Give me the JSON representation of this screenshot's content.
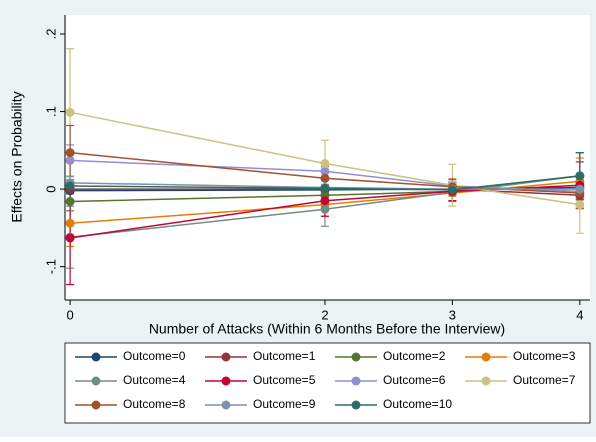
{
  "chart_data": {
    "type": "line",
    "xlabel": "Number of Attacks (Within 6 Months Before the Interview)",
    "ylabel": "Effects on Probability",
    "x": [
      0,
      2,
      3,
      4
    ],
    "xlim": [
      -0.04,
      4.08
    ],
    "xticks": [
      0,
      2,
      3,
      4
    ],
    "ylim": [
      -0.143,
      0.2245
    ],
    "yticks": [
      {
        "value": -0.1,
        "label": "-.1"
      },
      0,
      {
        "value": 0.1,
        "label": ".1"
      },
      {
        "value": 0.2,
        "label": ".2"
      }
    ],
    "grid": false,
    "legend": "bottom",
    "series": [
      {
        "name": "Outcome=0",
        "color": "#1a476f",
        "values": [
          -0.002,
          -0.001,
          0.0,
          0.002
        ],
        "errors": [
          0.004,
          0.002,
          0.002,
          0.004
        ]
      },
      {
        "name": "Outcome=1",
        "color": "#90353b",
        "values": [
          0.0,
          0.0,
          0.0,
          -0.008
        ],
        "errors": [
          0.004,
          0.003,
          0.003,
          0.006
        ]
      },
      {
        "name": "Outcome=2",
        "color": "#55752f",
        "values": [
          -0.016,
          -0.008,
          -0.003,
          0.017
        ],
        "errors": [
          0.012,
          0.008,
          0.006,
          0.03
        ]
      },
      {
        "name": "Outcome=3",
        "color": "#e37e00",
        "values": [
          -0.044,
          -0.02,
          -0.005,
          0.01
        ],
        "errors": [
          0.03,
          0.015,
          0.01,
          0.03
        ]
      },
      {
        "name": "Outcome=4",
        "color": "#6e8e84",
        "values": [
          -0.062,
          -0.026,
          -0.004,
          0.017
        ],
        "errors": [
          0.04,
          0.022,
          0.012,
          0.03
        ]
      },
      {
        "name": "Outcome=5",
        "color": "#c10534",
        "values": [
          -0.063,
          -0.015,
          -0.003,
          0.005
        ],
        "errors": [
          0.06,
          0.02,
          0.012,
          0.03
        ]
      },
      {
        "name": "Outcome=6",
        "color": "#938dd2",
        "values": [
          0.037,
          0.023,
          0.004,
          -0.003
        ],
        "errors": [
          0.02,
          0.012,
          0.008,
          0.02
        ]
      },
      {
        "name": "Outcome=7",
        "color": "#cac27e",
        "values": [
          0.099,
          0.033,
          0.005,
          -0.02
        ],
        "errors": [
          0.082,
          0.03,
          0.027,
          0.037
        ]
      },
      {
        "name": "Outcome=8",
        "color": "#a0522d",
        "values": [
          0.047,
          0.014,
          0.003,
          -0.005
        ],
        "errors": [
          0.035,
          0.015,
          0.01,
          0.02
        ]
      },
      {
        "name": "Outcome=9",
        "color": "#7b92a8",
        "values": [
          0.008,
          0.002,
          0.0,
          0.0
        ],
        "errors": [
          0.008,
          0.004,
          0.004,
          0.006
        ]
      },
      {
        "name": "Outcome=10",
        "color": "#2d6d66",
        "values": [
          0.004,
          0.001,
          -0.001,
          0.017
        ],
        "errors": [
          0.006,
          0.003,
          0.003,
          0.03
        ]
      }
    ]
  }
}
